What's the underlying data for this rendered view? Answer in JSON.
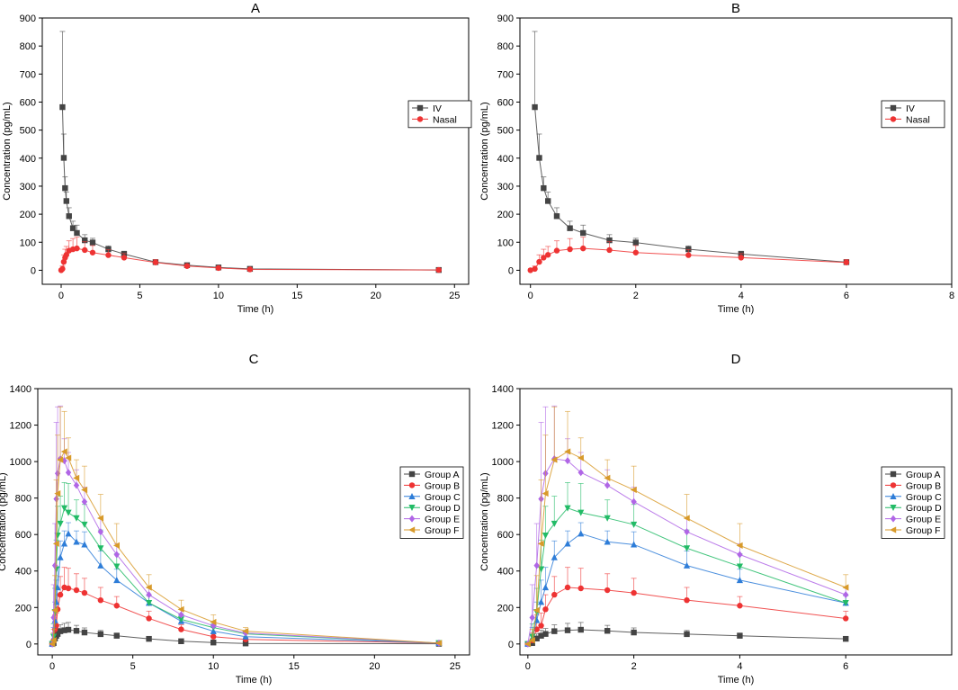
{
  "colors": {
    "iv": "#444444",
    "nasal": "#ee3333",
    "groupA": "#444444",
    "groupB": "#ee3333",
    "groupC": "#2e7dd8",
    "groupD": "#22bb66",
    "groupE": "#b066e6",
    "groupF": "#d89a2a"
  },
  "chart_data": [
    {
      "id": "A",
      "type": "line",
      "title": "A",
      "xlabel": "Time (h)",
      "ylabel": "Concentration (pg/mL)",
      "xlim": [
        -1.2,
        25.9
      ],
      "ylim": [
        -50,
        900
      ],
      "xticks": [
        0,
        5,
        10,
        15,
        20,
        25
      ],
      "yticks": [
        0,
        100,
        200,
        300,
        400,
        500,
        600,
        700,
        800,
        900
      ],
      "legend_position": "right",
      "series": [
        {
          "name": "IV",
          "marker": "square",
          "color": "#444444",
          "x": [
            0.083,
            0.167,
            0.25,
            0.333,
            0.5,
            0.75,
            1,
            1.5,
            2,
            3,
            4,
            6,
            8,
            10,
            12,
            24
          ],
          "y": [
            582,
            401,
            293,
            247,
            193,
            150,
            133,
            107,
            99,
            75,
            58,
            29,
            18,
            10,
            5,
            1
          ],
          "err": [
            270,
            85,
            40,
            32,
            30,
            25,
            28,
            20,
            15,
            12,
            10,
            6,
            5,
            4,
            3,
            1
          ]
        },
        {
          "name": "Nasal",
          "marker": "circle",
          "color": "#ee3333",
          "x": [
            0,
            0.083,
            0.167,
            0.25,
            0.333,
            0.5,
            0.75,
            1,
            1.5,
            2,
            3,
            4,
            6,
            8,
            10,
            12,
            24
          ],
          "y": [
            0,
            5,
            30,
            45,
            55,
            70,
            75,
            78,
            72,
            63,
            54,
            45,
            28,
            15,
            8,
            3,
            1
          ],
          "err": [
            0,
            10,
            25,
            30,
            30,
            35,
            38,
            40,
            30,
            25,
            20,
            15,
            10,
            6,
            4,
            2,
            1
          ]
        }
      ]
    },
    {
      "id": "B",
      "type": "line",
      "title": "B",
      "xlabel": "Time (h)",
      "ylabel": "Concentration (pg/mL)",
      "xlim": [
        -0.2,
        8
      ],
      "ylim": [
        -50,
        900
      ],
      "xticks": [
        0,
        2,
        4,
        6,
        8
      ],
      "yticks": [
        0,
        100,
        200,
        300,
        400,
        500,
        600,
        700,
        800,
        900
      ],
      "legend_position": "right",
      "series": [
        {
          "name": "IV",
          "marker": "square",
          "color": "#444444",
          "x": [
            0.083,
            0.167,
            0.25,
            0.333,
            0.5,
            0.75,
            1,
            1.5,
            2,
            3,
            4,
            6
          ],
          "y": [
            582,
            401,
            293,
            247,
            193,
            150,
            133,
            107,
            99,
            75,
            58,
            29
          ],
          "err": [
            270,
            85,
            40,
            32,
            30,
            25,
            28,
            20,
            15,
            12,
            10,
            6
          ]
        },
        {
          "name": "Nasal",
          "marker": "circle",
          "color": "#ee3333",
          "x": [
            0,
            0.083,
            0.167,
            0.25,
            0.333,
            0.5,
            0.75,
            1,
            1.5,
            2,
            3,
            4,
            6
          ],
          "y": [
            0,
            5,
            30,
            45,
            55,
            70,
            75,
            78,
            72,
            63,
            54,
            45,
            28
          ],
          "err": [
            0,
            10,
            25,
            30,
            30,
            35,
            38,
            40,
            30,
            25,
            20,
            15,
            10
          ]
        }
      ]
    },
    {
      "id": "C",
      "type": "line",
      "title": "C",
      "xlabel": "Time (h)",
      "ylabel": "Concentration (pg/mL)",
      "xlim": [
        -0.9,
        25.9
      ],
      "ylim": [
        -60,
        1400
      ],
      "xticks": [
        0,
        5,
        10,
        15,
        20,
        25
      ],
      "yticks": [
        0,
        200,
        400,
        600,
        800,
        1000,
        1200,
        1400
      ],
      "legend_position": "right",
      "series": [
        {
          "name": "Group A",
          "marker": "square",
          "color": "#444444",
          "x": [
            0,
            0.083,
            0.167,
            0.25,
            0.333,
            0.5,
            0.75,
            1,
            1.5,
            2,
            3,
            4,
            6,
            8,
            10,
            12,
            24
          ],
          "y": [
            0,
            5,
            30,
            45,
            55,
            70,
            75,
            78,
            72,
            63,
            54,
            45,
            28,
            15,
            8,
            3,
            1
          ],
          "err": [
            0,
            10,
            25,
            30,
            30,
            35,
            38,
            40,
            30,
            25,
            20,
            15,
            10,
            6,
            4,
            2,
            1
          ]
        },
        {
          "name": "Group B",
          "marker": "circle",
          "color": "#ee3333",
          "x": [
            0,
            0.083,
            0.167,
            0.25,
            0.333,
            0.5,
            0.75,
            1,
            1.5,
            2,
            3,
            4,
            6,
            8,
            10,
            12,
            24
          ],
          "y": [
            0,
            20,
            80,
            100,
            190,
            270,
            310,
            305,
            295,
            280,
            240,
            210,
            140,
            80,
            40,
            25,
            5
          ],
          "err": [
            0,
            40,
            80,
            70,
            80,
            100,
            110,
            110,
            90,
            80,
            70,
            50,
            40,
            25,
            15,
            10,
            3
          ]
        },
        {
          "name": "Group C",
          "marker": "triangle-up",
          "color": "#2e7dd8",
          "x": [
            0,
            0.083,
            0.167,
            0.25,
            0.333,
            0.5,
            0.75,
            1,
            1.5,
            2,
            3,
            4,
            6,
            8,
            10,
            12,
            24
          ],
          "y": [
            0,
            30,
            130,
            230,
            310,
            475,
            550,
            605,
            560,
            545,
            430,
            350,
            225,
            125,
            70,
            40,
            5
          ],
          "err": [
            0,
            60,
            100,
            120,
            110,
            90,
            70,
            60,
            60,
            70,
            80,
            60,
            40,
            30,
            20,
            15,
            3
          ]
        },
        {
          "name": "Group D",
          "marker": "triangle-down",
          "color": "#22bb66",
          "x": [
            0,
            0.083,
            0.167,
            0.25,
            0.333,
            0.5,
            0.75,
            1,
            1.5,
            2,
            3,
            4,
            6,
            8,
            10,
            12,
            24
          ],
          "y": [
            0,
            40,
            175,
            410,
            595,
            660,
            745,
            720,
            690,
            655,
            525,
            425,
            225,
            135,
            90,
            55,
            5
          ],
          "err": [
            0,
            70,
            130,
            160,
            160,
            150,
            140,
            160,
            100,
            110,
            100,
            70,
            40,
            30,
            20,
            15,
            3
          ]
        },
        {
          "name": "Group E",
          "marker": "diamond",
          "color": "#b066e6",
          "x": [
            0,
            0.083,
            0.167,
            0.25,
            0.333,
            0.5,
            0.75,
            1,
            1.5,
            2,
            3,
            4,
            6,
            8,
            10,
            12,
            24
          ],
          "y": [
            0,
            145,
            430,
            795,
            935,
            1015,
            1005,
            940,
            870,
            780,
            615,
            490,
            270,
            160,
            100,
            60,
            5
          ],
          "err": [
            0,
            180,
            230,
            420,
            365,
            290,
            120,
            110,
            85,
            80,
            75,
            60,
            40,
            30,
            20,
            15,
            3
          ]
        },
        {
          "name": "Group F",
          "marker": "triangle-left",
          "color": "#d89a2a",
          "x": [
            0,
            0.083,
            0.167,
            0.25,
            0.333,
            0.5,
            0.75,
            1,
            1.5,
            2,
            3,
            4,
            6,
            8,
            10,
            12,
            24
          ],
          "y": [
            0,
            20,
            185,
            550,
            825,
            1010,
            1055,
            1020,
            910,
            845,
            690,
            540,
            310,
            190,
            120,
            70,
            5
          ],
          "err": [
            0,
            60,
            190,
            350,
            320,
            290,
            220,
            110,
            100,
            130,
            130,
            120,
            70,
            50,
            40,
            20,
            5
          ]
        }
      ]
    },
    {
      "id": "D",
      "type": "line",
      "title": "D",
      "xlabel": "Time (h)",
      "ylabel": "Concentration (pg/mL)",
      "xlim": [
        -0.15,
        8
      ],
      "ylim": [
        -60,
        1400
      ],
      "xticks": [
        0,
        2,
        4,
        6
      ],
      "yticks": [
        0,
        200,
        400,
        600,
        800,
        1000,
        1200,
        1400
      ],
      "legend_position": "right",
      "series": [
        {
          "name": "Group A",
          "marker": "square",
          "color": "#444444",
          "x": [
            0,
            0.083,
            0.167,
            0.25,
            0.333,
            0.5,
            0.75,
            1,
            1.5,
            2,
            3,
            4,
            6
          ],
          "y": [
            0,
            5,
            30,
            45,
            55,
            70,
            75,
            78,
            72,
            63,
            54,
            45,
            28
          ],
          "err": [
            0,
            10,
            25,
            30,
            30,
            35,
            38,
            40,
            30,
            25,
            20,
            15,
            10
          ]
        },
        {
          "name": "Group B",
          "marker": "circle",
          "color": "#ee3333",
          "x": [
            0,
            0.083,
            0.167,
            0.25,
            0.333,
            0.5,
            0.75,
            1,
            1.5,
            2,
            3,
            4,
            6
          ],
          "y": [
            0,
            20,
            80,
            100,
            190,
            270,
            310,
            305,
            295,
            280,
            240,
            210,
            140
          ],
          "err": [
            0,
            40,
            80,
            70,
            80,
            100,
            110,
            110,
            90,
            80,
            70,
            50,
            40
          ]
        },
        {
          "name": "Group C",
          "marker": "triangle-up",
          "color": "#2e7dd8",
          "x": [
            0,
            0.083,
            0.167,
            0.25,
            0.333,
            0.5,
            0.75,
            1,
            1.5,
            2,
            3,
            4,
            6
          ],
          "y": [
            0,
            30,
            130,
            230,
            310,
            475,
            550,
            605,
            560,
            545,
            430,
            350,
            225
          ],
          "err": [
            0,
            60,
            100,
            120,
            110,
            90,
            70,
            60,
            60,
            70,
            80,
            60,
            40
          ]
        },
        {
          "name": "Group D",
          "marker": "triangle-down",
          "color": "#22bb66",
          "x": [
            0,
            0.083,
            0.167,
            0.25,
            0.333,
            0.5,
            0.75,
            1,
            1.5,
            2,
            3,
            4,
            6
          ],
          "y": [
            0,
            40,
            175,
            410,
            595,
            660,
            745,
            720,
            690,
            655,
            525,
            425,
            225
          ],
          "err": [
            0,
            70,
            130,
            160,
            160,
            150,
            140,
            160,
            100,
            110,
            100,
            70,
            40
          ]
        },
        {
          "name": "Group E",
          "marker": "diamond",
          "color": "#b066e6",
          "x": [
            0,
            0.083,
            0.167,
            0.25,
            0.333,
            0.5,
            0.75,
            1,
            1.5,
            2,
            3,
            4,
            6
          ],
          "y": [
            0,
            145,
            430,
            795,
            935,
            1015,
            1005,
            940,
            870,
            780,
            615,
            490,
            270
          ],
          "err": [
            0,
            180,
            230,
            420,
            365,
            290,
            120,
            110,
            85,
            80,
            75,
            60,
            40
          ]
        },
        {
          "name": "Group F",
          "marker": "triangle-left",
          "color": "#d89a2a",
          "x": [
            0,
            0.083,
            0.167,
            0.25,
            0.333,
            0.5,
            0.75,
            1,
            1.5,
            2,
            3,
            4,
            6
          ],
          "y": [
            0,
            20,
            185,
            550,
            825,
            1010,
            1055,
            1020,
            910,
            845,
            690,
            540,
            310
          ],
          "err": [
            0,
            60,
            190,
            350,
            320,
            290,
            220,
            110,
            100,
            130,
            130,
            120,
            70
          ]
        }
      ]
    }
  ]
}
